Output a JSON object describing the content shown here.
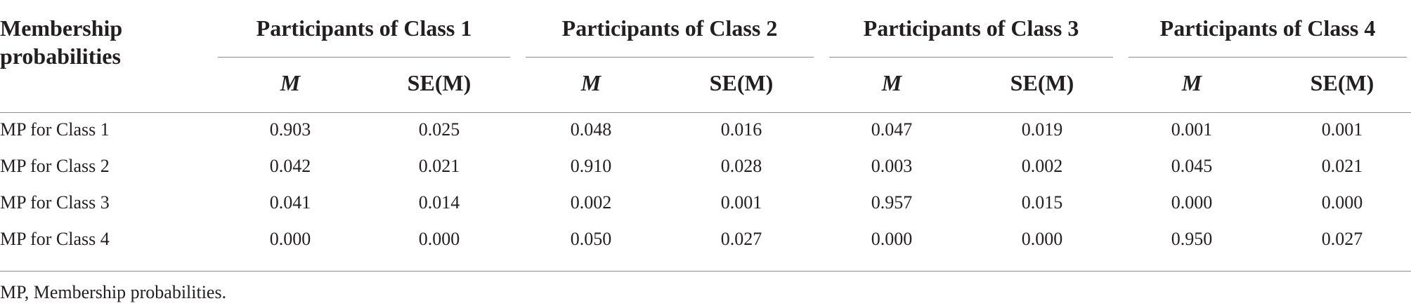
{
  "header": {
    "row_label": "Membership probabilities",
    "groups": [
      "Participants of Class 1",
      "Participants of Class 2",
      "Participants of Class 3",
      "Participants of Class 4"
    ],
    "sub_mean": "M",
    "sub_se": "SE(M)"
  },
  "rows": [
    {
      "label": "MP for Class 1",
      "values": [
        "0.903",
        "0.025",
        "0.048",
        "0.016",
        "0.047",
        "0.019",
        "0.001",
        "0.001"
      ]
    },
    {
      "label": "MP for Class 2",
      "values": [
        "0.042",
        "0.021",
        "0.910",
        "0.028",
        "0.003",
        "0.002",
        "0.045",
        "0.021"
      ]
    },
    {
      "label": "MP for Class 3",
      "values": [
        "0.041",
        "0.014",
        "0.002",
        "0.001",
        "0.957",
        "0.015",
        "0.000",
        "0.000"
      ]
    },
    {
      "label": "MP for Class 4",
      "values": [
        "0.000",
        "0.000",
        "0.050",
        "0.027",
        "0.000",
        "0.000",
        "0.950",
        "0.027"
      ]
    }
  ],
  "footnote": "MP, Membership probabilities."
}
